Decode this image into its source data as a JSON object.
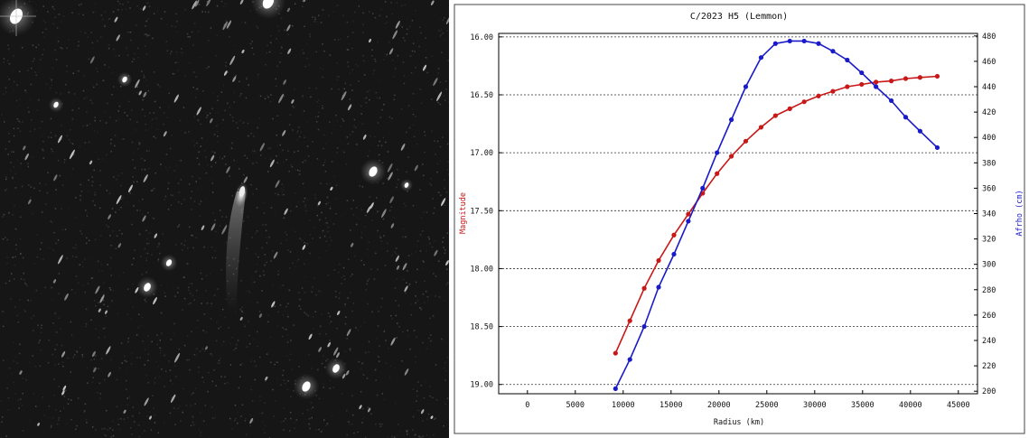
{
  "photo": {
    "description_icon": "comet-photo"
  },
  "chart_data": {
    "type": "line",
    "title": "C/2023 H5 (Lemmon)",
    "xlabel": "Radius (km)",
    "ylabel_left": "Magnitude",
    "ylabel_right": "Afrho (cm)",
    "xlim": [
      -3000,
      47000
    ],
    "ylim_left": [
      19.08,
      15.97
    ],
    "ylim_right": [
      198,
      482
    ],
    "x_ticks": [
      0,
      5000,
      10000,
      15000,
      20000,
      25000,
      30000,
      35000,
      40000,
      45000
    ],
    "x_tick_labels": [
      "0",
      "5000",
      "10000",
      "15000",
      "20000",
      "25000",
      "30000",
      "35000",
      "40000",
      "45000"
    ],
    "y_left_ticks": [
      16.0,
      16.5,
      17.0,
      17.5,
      18.0,
      18.5,
      19.0
    ],
    "y_left_tick_labels": [
      "16.00",
      "16.50",
      "17.00",
      "17.50",
      "18.00",
      "18.50",
      "19.00"
    ],
    "y_right_ticks": [
      200,
      220,
      240,
      260,
      280,
      300,
      320,
      340,
      360,
      380,
      400,
      420,
      440,
      460,
      480
    ],
    "y_right_tick_labels": [
      "200",
      "220",
      "240",
      "260",
      "280",
      "300",
      "320",
      "340",
      "360",
      "380",
      "400",
      "420",
      "440",
      "460",
      "480"
    ],
    "grid": "horizontal-dotted",
    "series": [
      {
        "axis": "left",
        "color": "#c81818",
        "x": [
          9200,
          10700,
          12200,
          13700,
          15300,
          16800,
          18300,
          19800,
          21300,
          22800,
          24400,
          25900,
          27400,
          28900,
          30400,
          31900,
          33400,
          34900,
          36400,
          38000,
          39500,
          41000,
          42800
        ],
        "values": [
          18.73,
          18.45,
          18.17,
          17.93,
          17.71,
          17.53,
          17.35,
          17.18,
          17.03,
          16.9,
          16.78,
          16.68,
          16.62,
          16.56,
          16.51,
          16.47,
          16.43,
          16.41,
          16.39,
          16.38,
          16.36,
          16.35,
          16.34
        ]
      },
      {
        "axis": "right",
        "color": "#1a1ac8",
        "x": [
          9200,
          10700,
          12200,
          13700,
          15300,
          16800,
          18300,
          19800,
          21300,
          22800,
          24400,
          25900,
          27400,
          28900,
          30400,
          31900,
          33400,
          34900,
          36400,
          38000,
          39500,
          41000,
          42800
        ],
        "values": [
          202,
          225,
          251,
          282,
          308,
          334,
          360,
          388,
          414,
          440,
          463,
          474,
          476,
          476,
          474,
          468,
          461,
          451,
          440,
          429,
          416,
          405,
          392
        ]
      }
    ]
  }
}
